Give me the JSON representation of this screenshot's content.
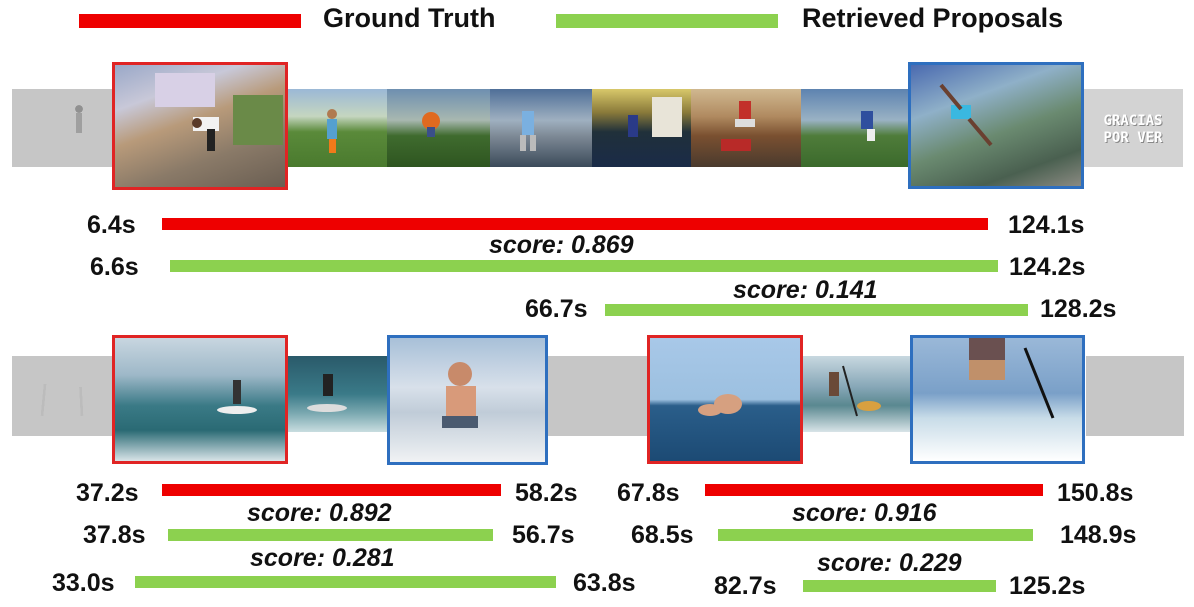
{
  "colors": {
    "ground_truth": "#ee0000",
    "proposal": "#8cd14f",
    "gt_frame_border": "#e02424",
    "proposal_frame_border": "#2e6fbf"
  },
  "legend": {
    "ground_truth": "Ground Truth",
    "retrieved": "Retrieved Proposals"
  },
  "example1": {
    "frames": [
      "faded-start-frame",
      "gt-start-frame",
      "frame-3",
      "frame-4",
      "frame-5",
      "frame-6",
      "frame-7",
      "frame-8",
      "proposal-end-frame",
      "end-title-card"
    ],
    "end_card_text": "GRACIAS POR VER",
    "gt": {
      "start": "6.4s",
      "end": "124.1s"
    },
    "proposals": [
      {
        "score": "score: 0.869",
        "start": "6.6s",
        "end": "124.2s"
      },
      {
        "score": "score: 0.141",
        "start": "66.7s",
        "end": "128.2s"
      }
    ]
  },
  "example2": {
    "left": {
      "gt": {
        "start": "37.2s",
        "end": "58.2s"
      },
      "proposals": [
        {
          "score": "score: 0.892",
          "start": "37.8s",
          "end": "56.7s"
        },
        {
          "score": "score: 0.281",
          "start": "33.0s",
          "end": "63.8s"
        }
      ]
    },
    "right": {
      "gt": {
        "start": "67.8s",
        "end": "150.8s"
      },
      "proposals": [
        {
          "score": "score: 0.916",
          "start": "68.5s",
          "end": "148.9s"
        },
        {
          "score": "score: 0.229",
          "start": "82.7s",
          "end": "125.2s"
        }
      ]
    }
  }
}
